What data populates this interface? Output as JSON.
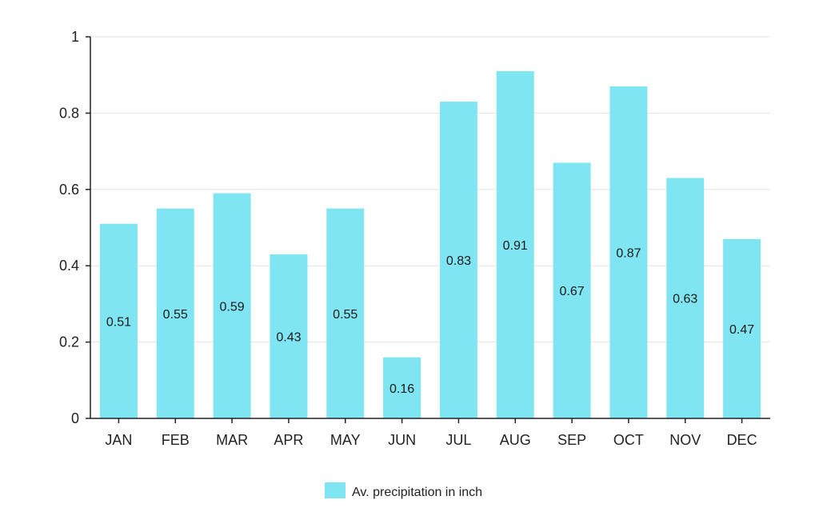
{
  "chart_data": {
    "type": "bar",
    "categories": [
      "JAN",
      "FEB",
      "MAR",
      "APR",
      "MAY",
      "JUN",
      "JUL",
      "AUG",
      "SEP",
      "OCT",
      "NOV",
      "DEC"
    ],
    "series": [
      {
        "name": "Av. precipitation in inch",
        "values": [
          0.51,
          0.55,
          0.59,
          0.43,
          0.55,
          0.16,
          0.83,
          0.91,
          0.67,
          0.87,
          0.63,
          0.47
        ],
        "color": "#80e5f2"
      }
    ],
    "data_labels": [
      "0.51",
      "0.55",
      "0.59",
      "0.43",
      "0.55",
      "0.16",
      "0.83",
      "0.91",
      "0.67",
      "0.87",
      "0.63",
      "0.47"
    ],
    "y_ticks": [
      "0",
      "0.2",
      "0.4",
      "0.6",
      "0.8",
      "1"
    ],
    "ylim": [
      0,
      1
    ],
    "title": "",
    "xlabel": "",
    "ylabel": "",
    "grid": true,
    "legend_position": "bottom-center",
    "colors": {
      "bar": "#80e5f2",
      "grid": "#e3e3e3",
      "axis": "#222222"
    }
  }
}
